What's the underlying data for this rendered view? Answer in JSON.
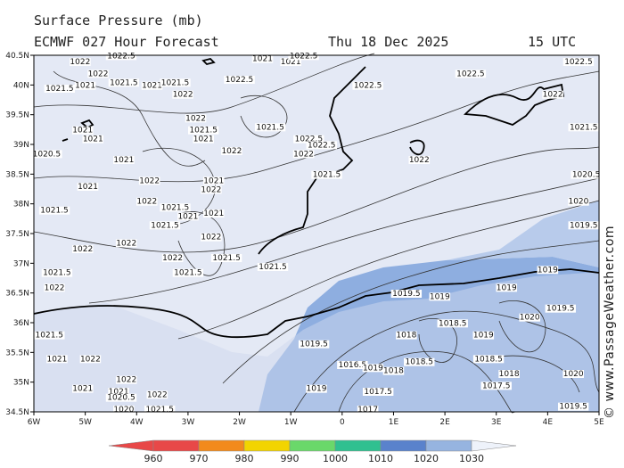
{
  "header": {
    "title": "Surface Pressure (mb)",
    "model": "ECMWF 027 Hour Forecast",
    "date": "Thu 18 Dec 2025",
    "time": "15 UTC"
  },
  "lat_ticks": [
    "40.5N",
    "40N",
    "39.5N",
    "39N",
    "38.5N",
    "38N",
    "37.5N",
    "37N",
    "36.5N",
    "36N",
    "35.5N",
    "35N",
    "34.5N"
  ],
  "lon_ticks": [
    "6W",
    "5W",
    "4W",
    "3W",
    "2W",
    "1W",
    "0",
    "1E",
    "2E",
    "3E",
    "4E",
    "5E"
  ],
  "isobar_labels": [
    {
      "t": "1022",
      "lon": -5.1,
      "lat": 40.35
    },
    {
      "t": "1022.5",
      "lon": -4.3,
      "lat": 40.45
    },
    {
      "t": "1022",
      "lon": -4.75,
      "lat": 40.15
    },
    {
      "t": "1021.5",
      "lon": -5.5,
      "lat": 39.9
    },
    {
      "t": "1021",
      "lon": -5.0,
      "lat": 39.95
    },
    {
      "t": "1021.5",
      "lon": -4.25,
      "lat": 40.0
    },
    {
      "t": "1021",
      "lon": -3.7,
      "lat": 39.95
    },
    {
      "t": "1021.5",
      "lon": -3.25,
      "lat": 40.0
    },
    {
      "t": "1022",
      "lon": -3.1,
      "lat": 39.8
    },
    {
      "t": "1021",
      "lon": -1.55,
      "lat": 40.4
    },
    {
      "t": "1021",
      "lon": -1.0,
      "lat": 40.35
    },
    {
      "t": "1022.5",
      "lon": -0.75,
      "lat": 40.45
    },
    {
      "t": "1022.5",
      "lon": -2.0,
      "lat": 40.05
    },
    {
      "t": "1022.5",
      "lon": 0.5,
      "lat": 39.95
    },
    {
      "t": "1022.5",
      "lon": 2.5,
      "lat": 40.15
    },
    {
      "t": "1022.5",
      "lon": 4.6,
      "lat": 40.35
    },
    {
      "t": "1022",
      "lon": 4.1,
      "lat": 39.8
    },
    {
      "t": "1021",
      "lon": -5.05,
      "lat": 39.2
    },
    {
      "t": "1021",
      "lon": -4.85,
      "lat": 39.05
    },
    {
      "t": "1022",
      "lon": -2.85,
      "lat": 39.4
    },
    {
      "t": "1021.5",
      "lon": -2.7,
      "lat": 39.2
    },
    {
      "t": "1021",
      "lon": -2.7,
      "lat": 39.05
    },
    {
      "t": "1021.5",
      "lon": -1.4,
      "lat": 39.25
    },
    {
      "t": "1022.5",
      "lon": -0.65,
      "lat": 39.05
    },
    {
      "t": "1022.5",
      "lon": -0.4,
      "lat": 38.95
    },
    {
      "t": "1022",
      "lon": -0.75,
      "lat": 38.8
    },
    {
      "t": "1022",
      "lon": -2.15,
      "lat": 38.85
    },
    {
      "t": "1020.5",
      "lon": -5.75,
      "lat": 38.8
    },
    {
      "t": "1021",
      "lon": -4.25,
      "lat": 38.7
    },
    {
      "t": "1021.5",
      "lon": -0.3,
      "lat": 38.45
    },
    {
      "t": "1022",
      "lon": 1.5,
      "lat": 38.7
    },
    {
      "t": "1021.5",
      "lon": 4.7,
      "lat": 39.25
    },
    {
      "t": "1020.5",
      "lon": 4.75,
      "lat": 38.45
    },
    {
      "t": "1021",
      "lon": -4.95,
      "lat": 38.25
    },
    {
      "t": "1022",
      "lon": -3.75,
      "lat": 38.35
    },
    {
      "t": "1021",
      "lon": -2.5,
      "lat": 38.35
    },
    {
      "t": "1022",
      "lon": -2.55,
      "lat": 38.2
    },
    {
      "t": "1022",
      "lon": -3.8,
      "lat": 38.0
    },
    {
      "t": "1021.5",
      "lon": -5.6,
      "lat": 37.85
    },
    {
      "t": "1021.5",
      "lon": -3.25,
      "lat": 37.9
    },
    {
      "t": "1021",
      "lon": -3.0,
      "lat": 37.75
    },
    {
      "t": "1021",
      "lon": -2.5,
      "lat": 37.8
    },
    {
      "t": "1021.5",
      "lon": -3.45,
      "lat": 37.6
    },
    {
      "t": "1020",
      "lon": 4.6,
      "lat": 38.0
    },
    {
      "t": "1019.5",
      "lon": 4.7,
      "lat": 37.6
    },
    {
      "t": "1022",
      "lon": -4.2,
      "lat": 37.3
    },
    {
      "t": "1022",
      "lon": -2.55,
      "lat": 37.4
    },
    {
      "t": "1022",
      "lon": -5.05,
      "lat": 37.2
    },
    {
      "t": "1022",
      "lon": -3.3,
      "lat": 37.05
    },
    {
      "t": "1021.5",
      "lon": -2.25,
      "lat": 37.05
    },
    {
      "t": "1021.5",
      "lon": -1.35,
      "lat": 36.9
    },
    {
      "t": "1021.5",
      "lon": -3.0,
      "lat": 36.8
    },
    {
      "t": "1021.5",
      "lon": -5.55,
      "lat": 36.8
    },
    {
      "t": "1022",
      "lon": -5.6,
      "lat": 36.55
    },
    {
      "t": "1019",
      "lon": 4.0,
      "lat": 36.85
    },
    {
      "t": "1019.5",
      "lon": 1.25,
      "lat": 36.45
    },
    {
      "t": "1019",
      "lon": 1.9,
      "lat": 36.4
    },
    {
      "t": "1019",
      "lon": 3.2,
      "lat": 36.55
    },
    {
      "t": "1020",
      "lon": 3.65,
      "lat": 36.05
    },
    {
      "t": "1019.5",
      "lon": 4.25,
      "lat": 36.2
    },
    {
      "t": "1018.5",
      "lon": 2.15,
      "lat": 35.95
    },
    {
      "t": "1018",
      "lon": 1.25,
      "lat": 35.75
    },
    {
      "t": "1019",
      "lon": 2.75,
      "lat": 35.75
    },
    {
      "t": "1021.5",
      "lon": -5.7,
      "lat": 35.75
    },
    {
      "t": "1019.5",
      "lon": -0.55,
      "lat": 35.6
    },
    {
      "t": "1021",
      "lon": -5.55,
      "lat": 35.35
    },
    {
      "t": "1022",
      "lon": -4.9,
      "lat": 35.35
    },
    {
      "t": "1016.5",
      "lon": 0.2,
      "lat": 35.25
    },
    {
      "t": "1019",
      "lon": 0.6,
      "lat": 35.2
    },
    {
      "t": "1018",
      "lon": 1.0,
      "lat": 35.15
    },
    {
      "t": "1018.5",
      "lon": 1.5,
      "lat": 35.3
    },
    {
      "t": "1018.5",
      "lon": 2.85,
      "lat": 35.35
    },
    {
      "t": "1018",
      "lon": 3.25,
      "lat": 35.1
    },
    {
      "t": "1020",
      "lon": 4.5,
      "lat": 35.1
    },
    {
      "t": "1022",
      "lon": -4.2,
      "lat": 35.0
    },
    {
      "t": "1021",
      "lon": -5.05,
      "lat": 34.85
    },
    {
      "t": "1021",
      "lon": -4.35,
      "lat": 34.8
    },
    {
      "t": "1020.5",
      "lon": -4.3,
      "lat": 34.7
    },
    {
      "t": "1022",
      "lon": -3.6,
      "lat": 34.75
    },
    {
      "t": "1019",
      "lon": -0.5,
      "lat": 34.85
    },
    {
      "t": "1017.5",
      "lon": 0.7,
      "lat": 34.8
    },
    {
      "t": "1017.5",
      "lon": 3.0,
      "lat": 34.9
    },
    {
      "t": "1019.5",
      "lon": 4.5,
      "lat": 34.55
    },
    {
      "t": "1017",
      "lon": 0.5,
      "lat": 34.5
    },
    {
      "t": "1021.5",
      "lon": -3.55,
      "lat": 34.5
    },
    {
      "t": "1020",
      "lon": -4.25,
      "lat": 34.5
    }
  ],
  "color_scale": {
    "labels": [
      "960",
      "970",
      "980",
      "990",
      "1000",
      "1010",
      "1020",
      "1030"
    ],
    "colors": [
      "#e84848",
      "#f28a1c",
      "#f2d400",
      "#6ad86a",
      "#30c090",
      "#5a82cc",
      "#96b4e0",
      "#d8e2f2"
    ]
  },
  "colors": {
    "land_fill": "#e4e9f5",
    "low_fill": "#8eaee0",
    "mid_fill": "#b8cbeb"
  },
  "credit": "© www.PassageWeather.com"
}
